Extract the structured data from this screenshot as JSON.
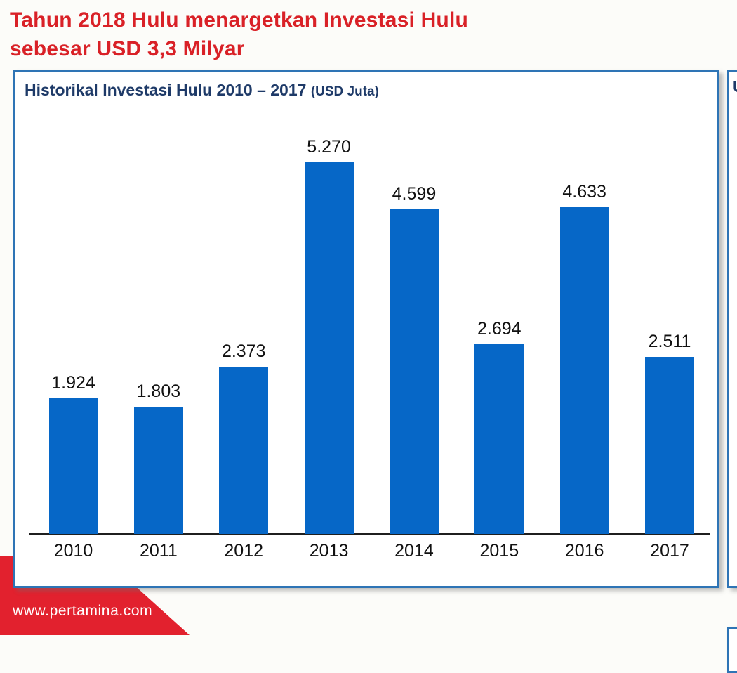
{
  "header": {
    "title_line1": "Tahun 2018 Hulu menargetkan Investasi Hulu",
    "title_line2": "sebesar USD 3,3 Milyar",
    "color": "#d92127"
  },
  "panel": {
    "title": "Historikal Investasi Hulu 2010 – 2017",
    "title_suffix": "(USD Juta)",
    "title_color": "#1e3a68",
    "border_color": "#2e74b5"
  },
  "chart_data": {
    "type": "bar",
    "title": "Historikal Investasi Hulu 2010 – 2017 (USD Juta)",
    "categories": [
      "2010",
      "2011",
      "2012",
      "2013",
      "2014",
      "2015",
      "2016",
      "2017"
    ],
    "values": [
      1924,
      1803,
      2373,
      5270,
      4599,
      2694,
      4633,
      2511
    ],
    "value_labels": [
      "1.924",
      "1.803",
      "2.373",
      "5.270",
      "4.599",
      "2.694",
      "4.633",
      "2.511"
    ],
    "unit": "USD Juta",
    "xlabel": "",
    "ylabel": "",
    "ylim": [
      0,
      5600
    ],
    "grid": false,
    "legend": false,
    "bar_color": "#0667c7",
    "axis_color": "#1f1f1f"
  },
  "right_panel": {
    "visible_text_fragment": "U"
  },
  "footer": {
    "url": "www.pertamina.com",
    "ribbon_color": "#e2212e"
  }
}
